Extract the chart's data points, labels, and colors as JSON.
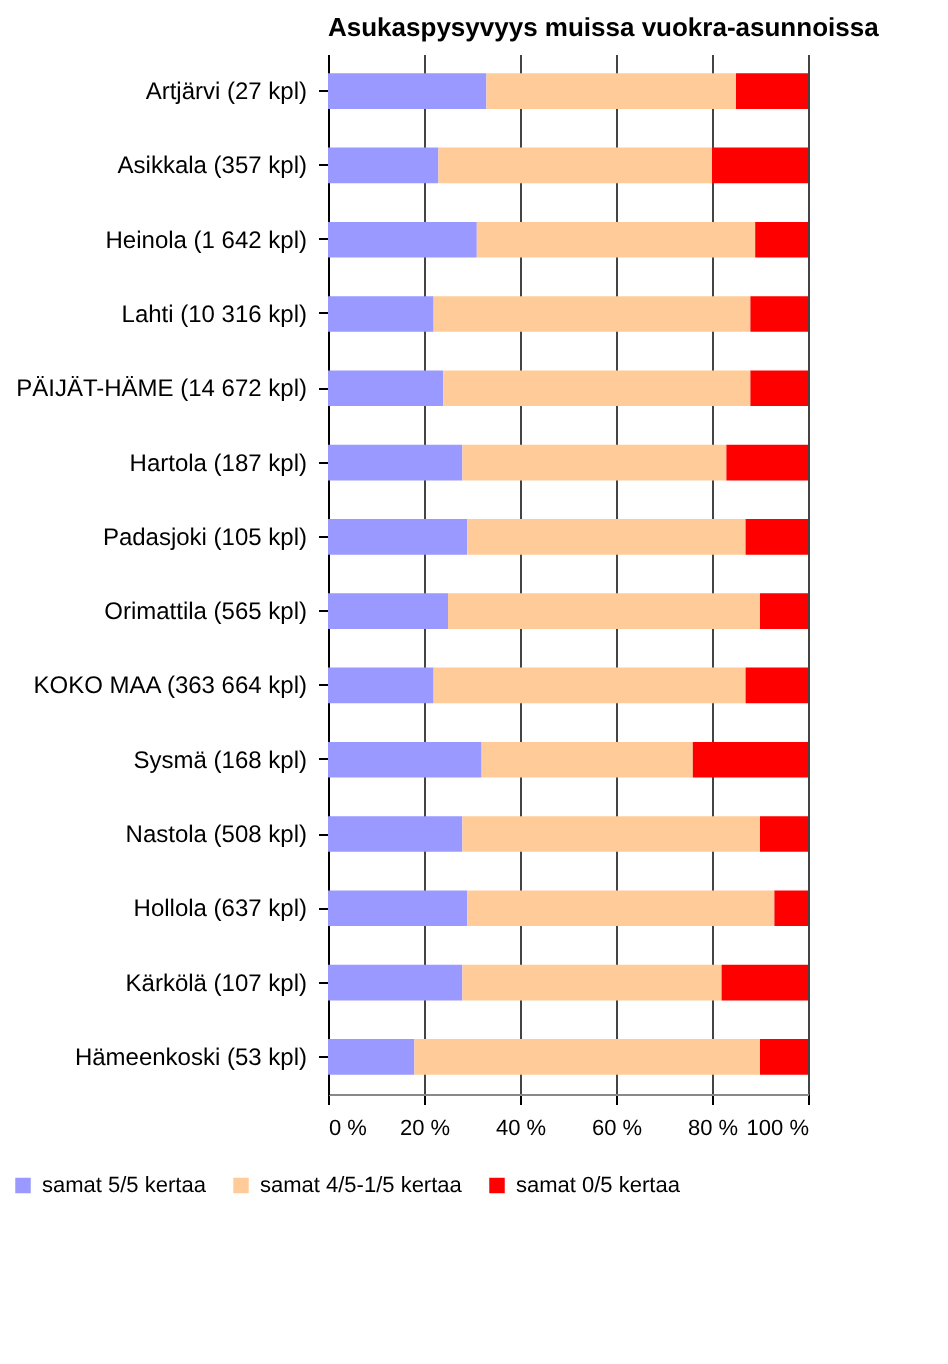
{
  "chart_data": {
    "type": "bar",
    "orientation": "horizontal",
    "stacked": true,
    "title": "Asukaspysyvyys muissa vuokra-asunnoissa",
    "categories": [
      "Artjärvi (27 kpl)",
      "Asikkala (357 kpl)",
      "Heinola (1 642 kpl)",
      "Lahti (10 316 kpl)",
      "PÄIJÄT-HÄME (14 672 kpl)",
      "Hartola (187 kpl)",
      "Padasjoki (105 kpl)",
      "Orimattila (565 kpl)",
      "KOKO MAA (363 664 kpl)",
      "Sysmä (168 kpl)",
      "Nastola (508 kpl)",
      "Hollola (637 kpl)",
      "Kärkölä (107 kpl)",
      "Hämeenkoski (53 kpl)"
    ],
    "series": [
      {
        "name": "samat 5/5 kertaa",
        "color": "#9999ff",
        "values": [
          33,
          23,
          31,
          22,
          24,
          28,
          29,
          25,
          22,
          32,
          28,
          29,
          28,
          18
        ]
      },
      {
        "name": "samat 4/5-1/5 kertaa",
        "color": "#ffcc99",
        "values": [
          52,
          57,
          58,
          66,
          64,
          55,
          58,
          65,
          65,
          44,
          62,
          64,
          54,
          72
        ]
      },
      {
        "name": "samat 0/5 kertaa",
        "color": "#ff0000",
        "values": [
          15,
          20,
          11,
          12,
          12,
          17,
          13,
          10,
          13,
          24,
          10,
          7,
          18,
          10
        ]
      }
    ],
    "xlim": [
      0,
      100
    ],
    "xticks": [
      {
        "value": 0,
        "label": "0 %"
      },
      {
        "value": 20,
        "label": "20 %"
      },
      {
        "value": 40,
        "label": "40 %"
      },
      {
        "value": 60,
        "label": "60 %"
      },
      {
        "value": 80,
        "label": "80 %"
      },
      {
        "value": 100,
        "label": "100 %"
      }
    ],
    "grid": "x",
    "legend": "bottom"
  }
}
